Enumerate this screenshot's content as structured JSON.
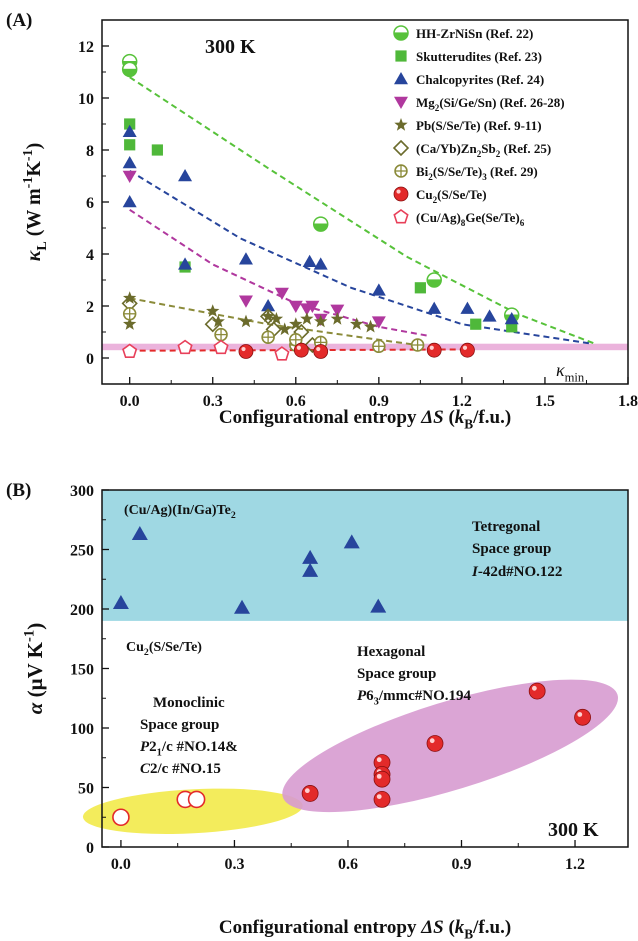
{
  "chart_data": [
    {
      "panel_label": "(A)",
      "type": "scatter",
      "annotation": "300 K",
      "kmin_label": "κmin",
      "xlabel": "Configurational entropy ΔS (kB/f.u.)",
      "ylabel": "κL (W m⁻¹K⁻¹)",
      "xlim": [
        -0.1,
        1.8
      ],
      "ylim": [
        -1,
        13
      ],
      "xticks": [
        "0.0",
        "0.3",
        "0.6",
        "0.9",
        "1.2",
        "1.5",
        "1.8"
      ],
      "yticks": [
        "0",
        "2",
        "4",
        "6",
        "8",
        "10",
        "12"
      ],
      "kmin_band": [
        0.3,
        0.55
      ],
      "legend_position": "top-right",
      "series": [
        {
          "name": "HH-ZrNiSn (Ref. 22)",
          "color": "#57c23a",
          "marker": "half-circle",
          "points": [
            [
              0,
              11.4
            ],
            [
              0,
              11.1
            ],
            [
              0.69,
              5.15
            ],
            [
              1.1,
              3.0
            ],
            [
              1.38,
              1.65
            ]
          ],
          "trend": [
            [
              0,
              10.8
            ],
            [
              0.5,
              7.3
            ],
            [
              1.0,
              3.9
            ],
            [
              1.4,
              1.7
            ],
            [
              1.68,
              0.55
            ]
          ]
        },
        {
          "name": "Skutterudites (Ref. 23)",
          "color": "#4fb83a",
          "marker": "square",
          "points": [
            [
              0,
              9.0
            ],
            [
              0,
              8.2
            ],
            [
              0.1,
              8.0
            ],
            [
              0.2,
              3.5
            ],
            [
              1.05,
              2.7
            ],
            [
              1.25,
              1.3
            ],
            [
              1.38,
              1.2
            ]
          ]
        },
        {
          "name": "Chalcopyrites (Ref. 24)",
          "color": "#27459c",
          "marker": "triangle",
          "points": [
            [
              0,
              8.7
            ],
            [
              0,
              7.5
            ],
            [
              0,
              6.0
            ],
            [
              0.2,
              7.0
            ],
            [
              0.2,
              3.6
            ],
            [
              0.42,
              3.8
            ],
            [
              0.5,
              2.0
            ],
            [
              0.65,
              3.7
            ],
            [
              0.69,
              3.6
            ],
            [
              0.9,
              2.6
            ],
            [
              1.1,
              1.9
            ],
            [
              1.22,
              1.9
            ],
            [
              1.3,
              1.6
            ],
            [
              1.38,
              1.5
            ]
          ],
          "trend": [
            [
              0,
              7.2
            ],
            [
              0.4,
              4.6
            ],
            [
              0.8,
              2.7
            ],
            [
              1.2,
              1.3
            ],
            [
              1.67,
              0.55
            ]
          ]
        },
        {
          "name": "Mg2(Si/Ge/Sn) (Ref. 26-28)",
          "color": "#b0389e",
          "marker": "triangle-down",
          "points": [
            [
              0,
              7.0
            ],
            [
              0.42,
              2.2
            ],
            [
              0.55,
              2.5
            ],
            [
              0.6,
              2.0
            ],
            [
              0.64,
              1.9
            ],
            [
              0.66,
              2.0
            ],
            [
              0.69,
              1.5
            ],
            [
              0.75,
              1.85
            ],
            [
              0.9,
              1.4
            ]
          ],
          "trend": [
            [
              0,
              5.7
            ],
            [
              0.3,
              3.6
            ],
            [
              0.6,
              2.1
            ],
            [
              0.9,
              1.2
            ],
            [
              1.08,
              0.85
            ]
          ]
        },
        {
          "name": "Pb(S/Se/Te) (Ref. 9-11)",
          "color": "#6b6b2c",
          "marker": "star",
          "points": [
            [
              0,
              2.3
            ],
            [
              0,
              1.3
            ],
            [
              0.3,
              1.8
            ],
            [
              0.32,
              1.4
            ],
            [
              0.42,
              1.4
            ],
            [
              0.5,
              1.6
            ],
            [
              0.53,
              1.5
            ],
            [
              0.56,
              1.1
            ],
            [
              0.6,
              1.3
            ],
            [
              0.64,
              1.5
            ],
            [
              0.69,
              1.4
            ],
            [
              0.75,
              1.5
            ],
            [
              0.82,
              1.3
            ],
            [
              0.87,
              1.2
            ]
          ]
        },
        {
          "name": "(Ca/Yb)Zn2Sb2 (Ref. 25)",
          "color": "#6b6b2c",
          "marker": "diamond-open",
          "points": [
            [
              0,
              2.1
            ],
            [
              0.3,
              1.3
            ],
            [
              0.5,
              1.6
            ],
            [
              0.52,
              1.1
            ],
            [
              0.62,
              1.0
            ],
            [
              0.66,
              0.5
            ]
          ]
        },
        {
          "name": "Bi2(S/Se/Te)3 (Ref. 29)",
          "color": "#8b8b3a",
          "marker": "circle-cross",
          "points": [
            [
              0,
              1.7
            ],
            [
              0.33,
              0.9
            ],
            [
              0.5,
              0.8
            ],
            [
              0.6,
              0.5
            ],
            [
              0.6,
              0.7
            ],
            [
              0.69,
              0.6
            ],
            [
              0.9,
              0.45
            ],
            [
              1.04,
              0.5
            ]
          ],
          "trend": [
            [
              0,
              2.3
            ],
            [
              0.5,
              1.3
            ],
            [
              0.9,
              0.7
            ],
            [
              1.04,
              0.5
            ]
          ]
        },
        {
          "name": "Cu2(S/Se/Te)",
          "color": "#e32a2a",
          "marker": "ball",
          "points": [
            [
              0.42,
              0.25
            ],
            [
              0.62,
              0.3
            ],
            [
              0.69,
              0.25
            ],
            [
              1.1,
              0.3
            ],
            [
              1.22,
              0.3
            ]
          ],
          "trend": [
            [
              0,
              0.28
            ],
            [
              0.5,
              0.3
            ],
            [
              1.0,
              0.32
            ],
            [
              1.22,
              0.33
            ]
          ]
        },
        {
          "name": "(Cu/Ag)8Ge(Se/Te)6",
          "color": "#e8405a",
          "marker": "pentagon-open",
          "points": [
            [
              0,
              0.25
            ],
            [
              0.2,
              0.4
            ],
            [
              0.33,
              0.4
            ],
            [
              0.55,
              0.15
            ]
          ]
        }
      ]
    },
    {
      "panel_label": "(B)",
      "type": "scatter",
      "annotation": "300 K",
      "xlabel": "Configurational entropy ΔS (kB/f.u.)",
      "ylabel": "α (μV K⁻¹)",
      "xlim": [
        -0.05,
        1.34
      ],
      "ylim": [
        0,
        300
      ],
      "xticks": [
        "0.0",
        "0.3",
        "0.6",
        "0.9",
        "1.2"
      ],
      "yticks": [
        "0",
        "50",
        "100",
        "150",
        "200",
        "250",
        "300"
      ],
      "tetragonal_band": [
        190,
        300
      ],
      "groups": [
        {
          "name": "(Cu/Ag)(In/Ga)Te2",
          "label": "(Cu/Ag)(In/Ga)Te2",
          "marker": "triangle",
          "color": "#27459c",
          "points": [
            [
              0.0,
              205
            ],
            [
              0.05,
              263
            ],
            [
              0.32,
              201
            ],
            [
              0.5,
              243
            ],
            [
              0.5,
              232
            ],
            [
              0.61,
              256
            ],
            [
              0.68,
              202
            ]
          ]
        },
        {
          "name": "Cu2(S/Se/Te) hexagonal",
          "marker": "ball",
          "color": "#e32a2a",
          "points": [
            [
              0.5,
              45
            ],
            [
              0.69,
              71
            ],
            [
              0.69,
              61
            ],
            [
              0.69,
              57
            ],
            [
              0.69,
              40
            ],
            [
              0.83,
              87
            ],
            [
              1.1,
              131
            ],
            [
              1.22,
              109
            ]
          ]
        },
        {
          "name": "Cu2(S/Se/Te) monoclinic",
          "marker": "circle-open",
          "color": "#e32a2a",
          "points": [
            [
              0.0,
              25
            ],
            [
              0.17,
              40
            ],
            [
              0.2,
              40
            ]
          ]
        }
      ],
      "texts": {
        "cu2_label": "Cu2(S/Se/Te)",
        "tetragonal": [
          "Tetregonal",
          "Space group",
          "I-42d#NO.122"
        ],
        "hexagonal": [
          "Hexagonal",
          "Space group",
          "P63/mmc#NO.194"
        ],
        "monoclinic": [
          "Monoclinic",
          "Space group",
          "P21/c #NO.14&",
          "C2/c #NO.15"
        ]
      }
    }
  ]
}
